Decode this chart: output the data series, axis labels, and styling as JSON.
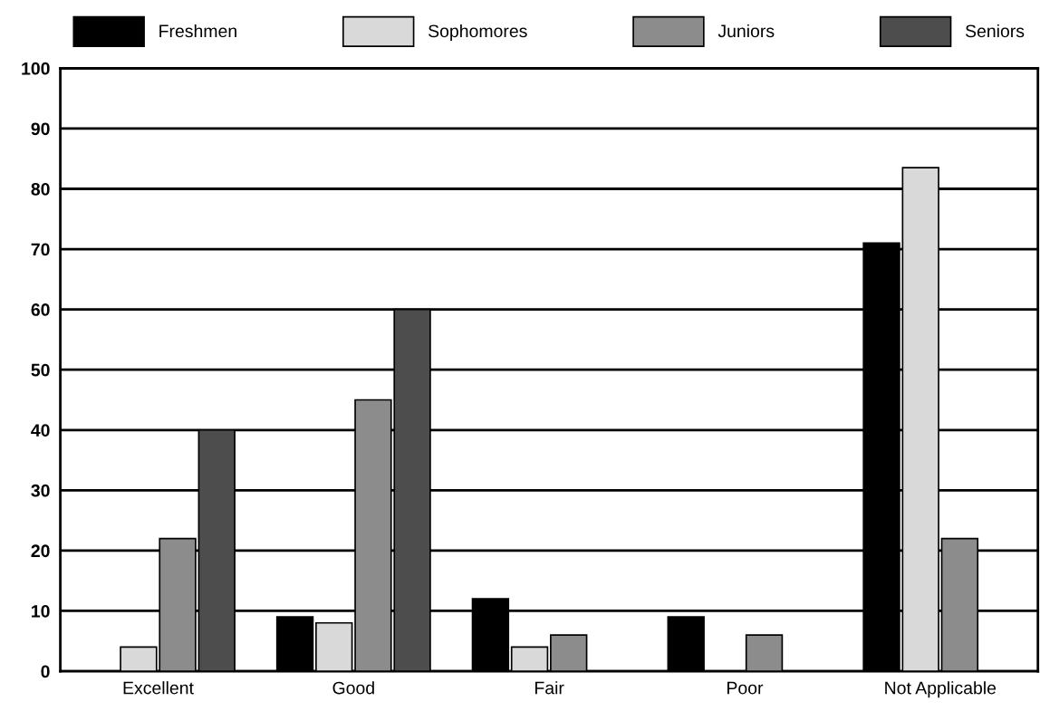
{
  "chart_data": {
    "type": "bar",
    "categories": [
      "Excellent",
      "Good",
      "Fair",
      "Poor",
      "Not Applicable"
    ],
    "series": [
      {
        "name": "Freshmen",
        "color": "#000000",
        "values": [
          null,
          9,
          12,
          9,
          71
        ]
      },
      {
        "name": "Sophomores",
        "color": "#d9d9d9",
        "values": [
          4,
          8,
          4,
          null,
          83.5
        ]
      },
      {
        "name": "Juniors",
        "color": "#8c8c8c",
        "values": [
          22,
          45,
          6,
          6,
          22
        ]
      },
      {
        "name": "Seniors",
        "color": "#4d4d4d",
        "values": [
          40,
          60,
          null,
          null,
          null
        ]
      }
    ],
    "ylim": [
      0,
      100
    ],
    "yticks": [
      0,
      10,
      20,
      30,
      40,
      50,
      60,
      70,
      80,
      90,
      100
    ],
    "grid": "y",
    "legend": "top"
  }
}
